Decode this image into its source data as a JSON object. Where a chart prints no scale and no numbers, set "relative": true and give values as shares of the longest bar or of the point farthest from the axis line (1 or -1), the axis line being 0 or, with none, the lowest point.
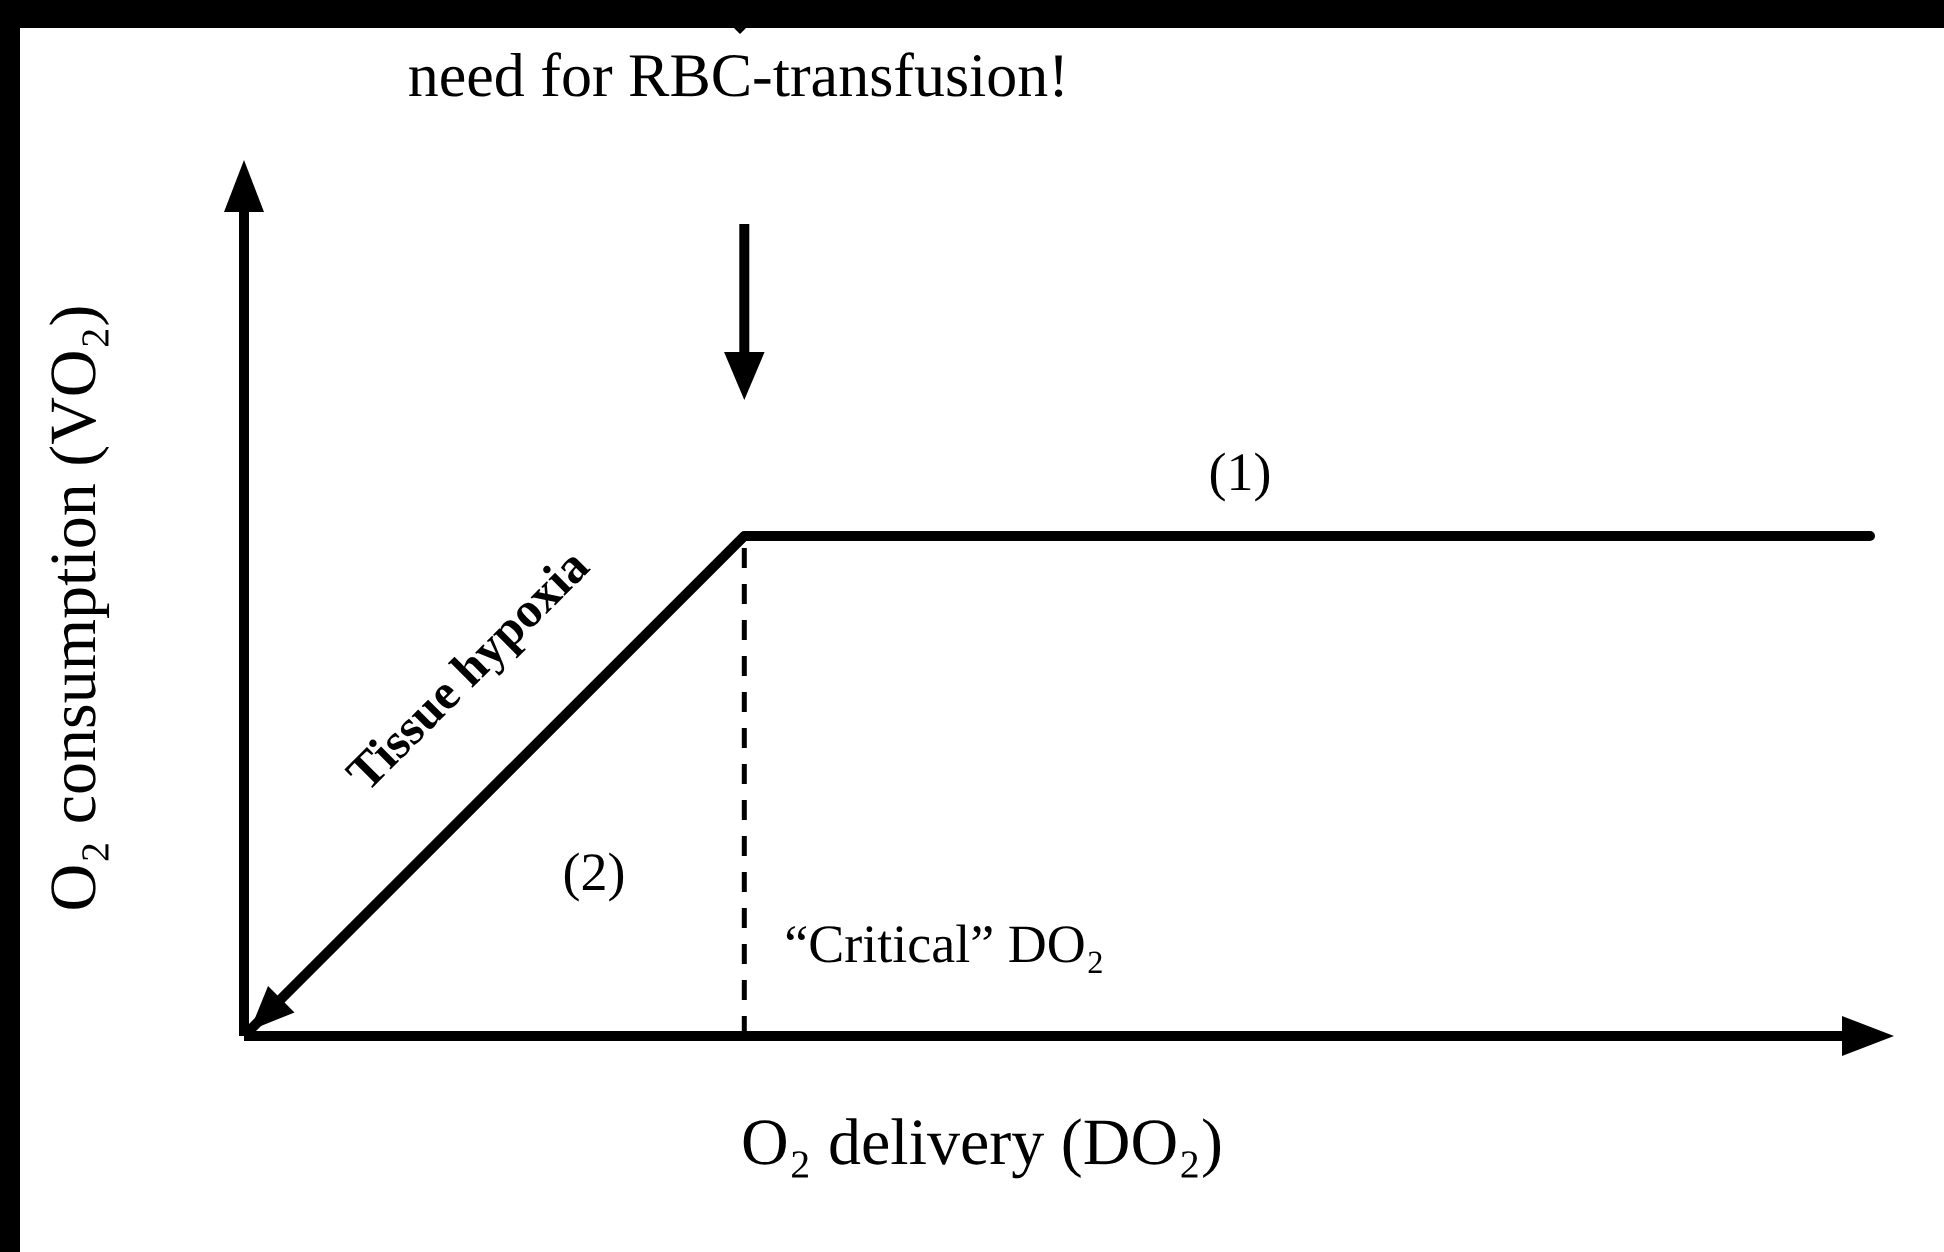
{
  "chart_data": {
    "type": "line",
    "relative": true,
    "xlabel": "O₂ delivery (DO₂)",
    "ylabel": "O₂ consumption (VO₂)",
    "categories": [
      null,
      null,
      null,
      null,
      null,
      null,
      null,
      null,
      null,
      null,
      null,
      null,
      null,
      null
    ],
    "series": [
      {
        "color": "#000000",
        "values": [
          0,
          null,
          null,
          null,
          1,
          null,
          null,
          null,
          null,
          null,
          null,
          null,
          null,
          1
        ]
      }
    ],
    "annotations": [
      "need for RBC-transfusion!",
      "(1)",
      "(2)",
      "Tissue hypoxia",
      "“Critical” DO₂"
    ],
    "marker": "none",
    "line_style": "solid",
    "legend": false,
    "grid": false
  }
}
